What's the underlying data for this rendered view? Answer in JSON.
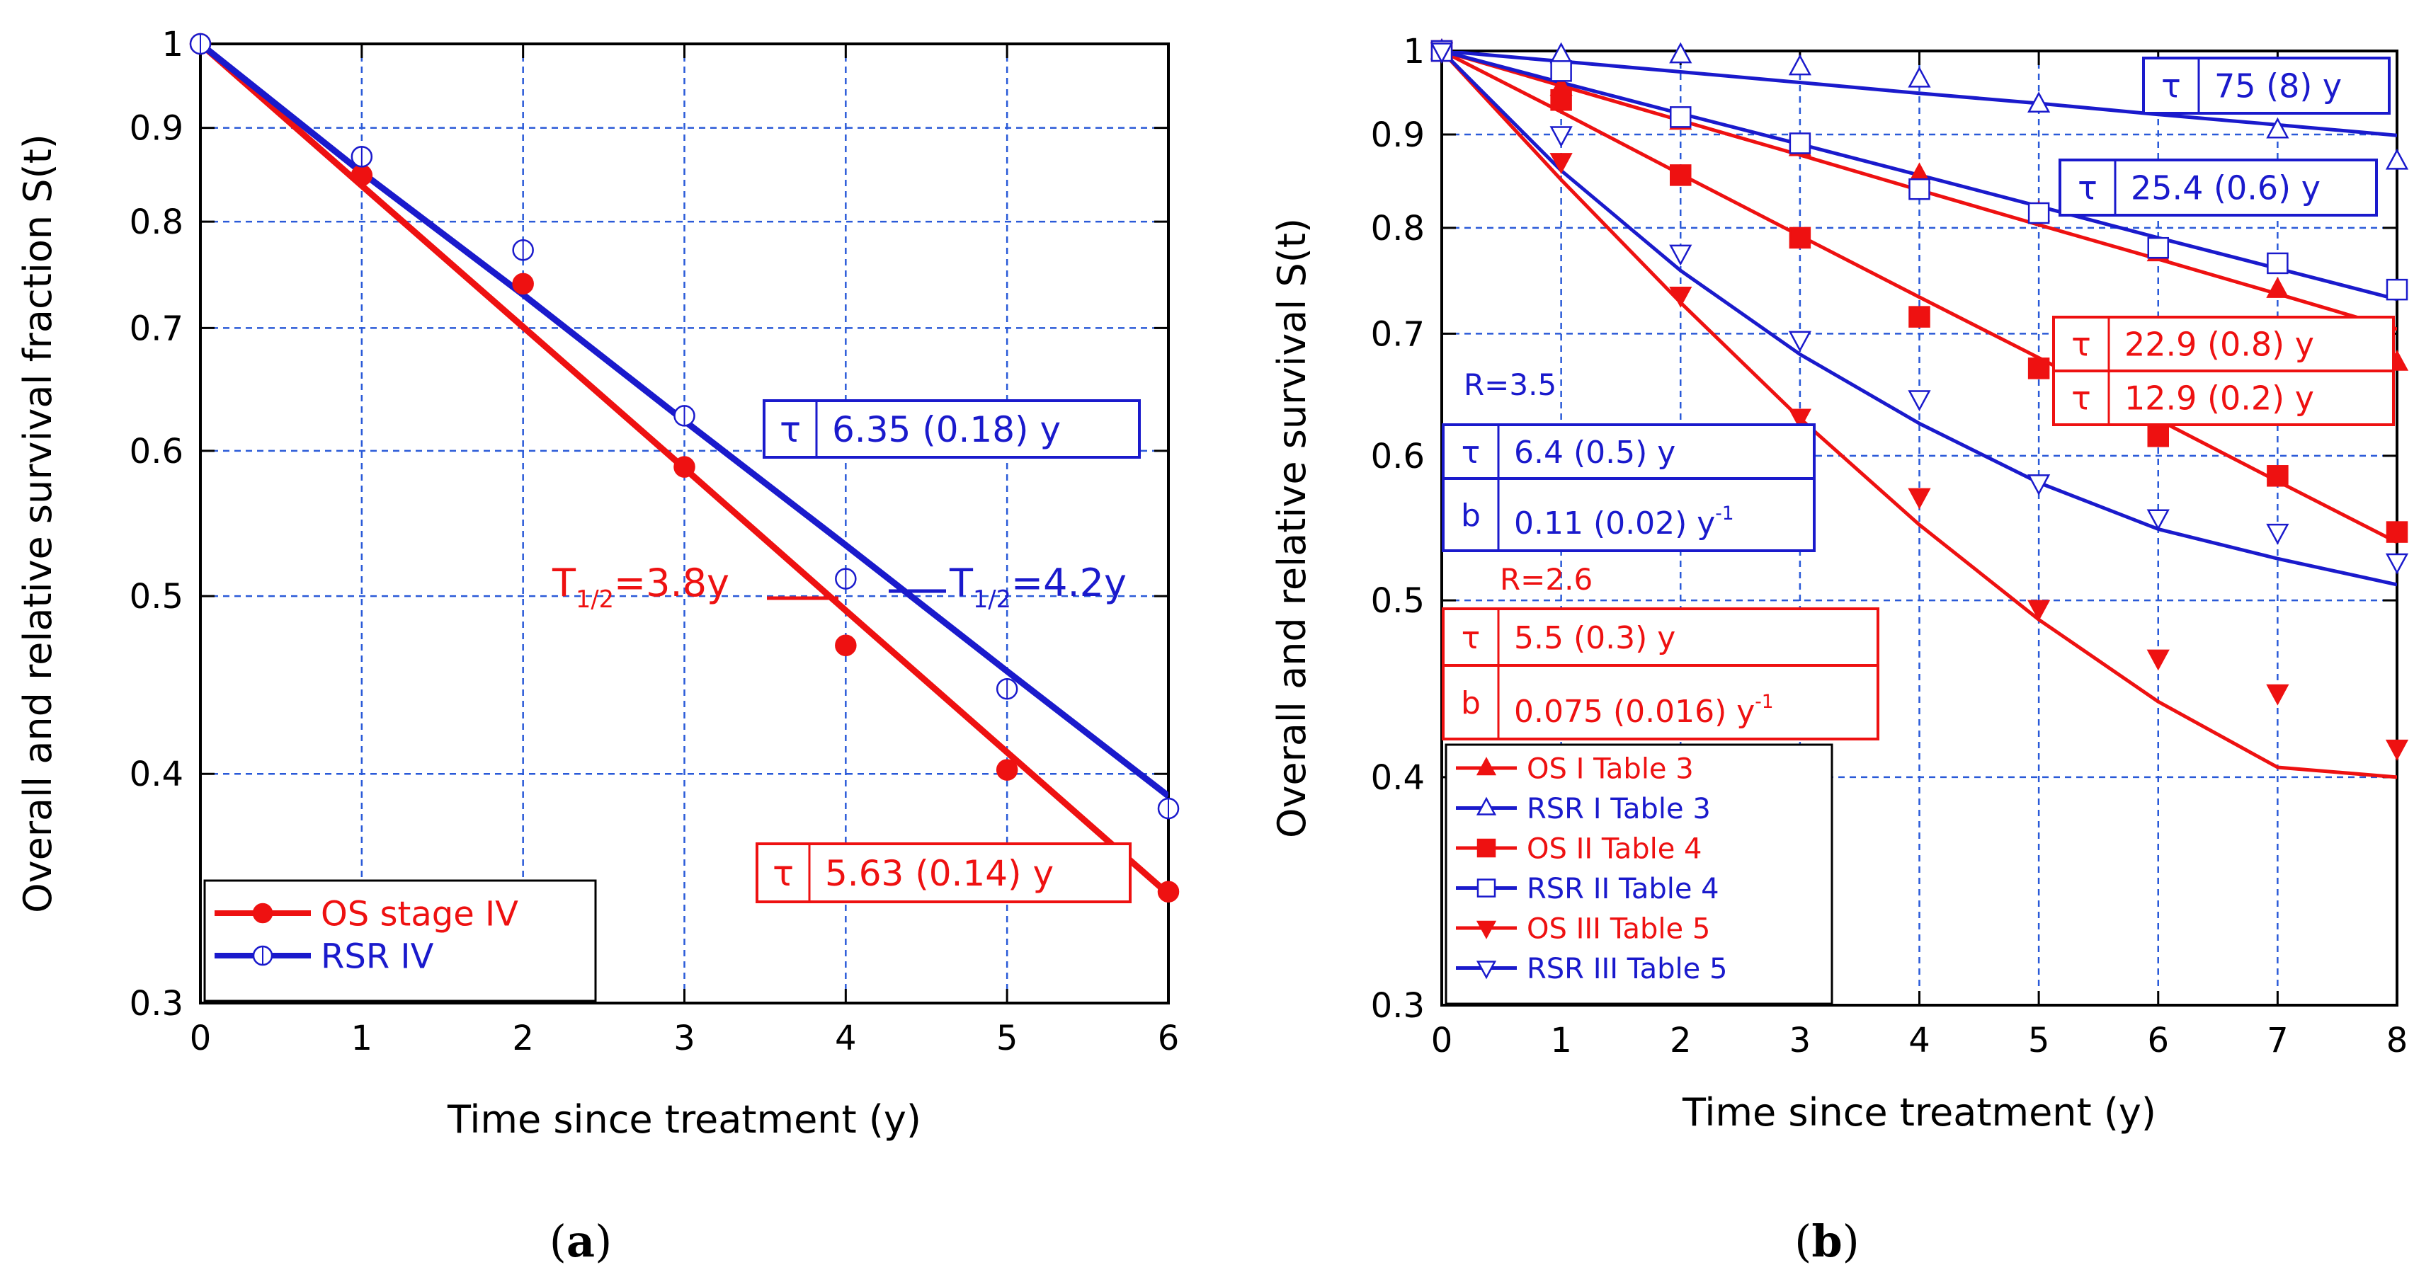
{
  "colors": {
    "os": "#ee1111",
    "rsr": "#1a1acc",
    "grid": "#2a5ad8",
    "axis": "#000000"
  },
  "chart_data": [
    {
      "type": "line",
      "panel_label": "(a)",
      "panel_prefix": "(",
      "panel_letter": "a",
      "panel_suffix": ")",
      "scale_y": "log",
      "xlabel": "Time since treatment (y)",
      "ylabel": "Overall and relative survival fraction S(t)",
      "xlim": [
        0,
        6
      ],
      "ylim": [
        0.3,
        1
      ],
      "xticks": [
        0,
        1,
        2,
        3,
        4,
        5,
        6
      ],
      "yticks": [
        0.3,
        0.4,
        0.5,
        0.6,
        0.7,
        0.8,
        0.9,
        1
      ],
      "ytick_labels": [
        "0.3",
        "0.4",
        "0.5",
        "0.6",
        "0.7",
        "0.8",
        "0.9",
        "1"
      ],
      "grid": true,
      "series": [
        {
          "name": "OS stage IV",
          "color": "#ee1111",
          "marker": "circle-filled",
          "x": [
            0,
            1,
            2,
            3,
            4,
            5,
            6
          ],
          "y": [
            1.0,
            0.848,
            0.74,
            0.588,
            0.47,
            0.402,
            0.345
          ],
          "fit": {
            "x": [
              0,
              1,
              2,
              3,
              4,
              5,
              6
            ],
            "y": [
              1.0,
              0.837,
              0.701,
              0.587,
              0.491,
              0.411,
              0.344
            ]
          }
        },
        {
          "name": "RSR IV",
          "color": "#1a1acc",
          "marker": "circle-open",
          "x": [
            0,
            1,
            2,
            3,
            4,
            5,
            6
          ],
          "y": [
            1.0,
            0.868,
            0.772,
            0.627,
            0.511,
            0.445,
            0.383
          ],
          "fit": {
            "x": [
              0,
              1,
              2,
              3,
              4,
              5,
              6
            ],
            "y": [
              1.0,
              0.851,
              0.73,
              0.623,
              0.533,
              0.455,
              0.389
            ]
          }
        }
      ],
      "annotations": [
        {
          "id": "tau-rsr",
          "symbol": "τ",
          "value": "6.35 (0.18) y",
          "color": "#1a1acc"
        },
        {
          "id": "tau-os",
          "symbol": "τ",
          "value": "5.63 (0.14) y",
          "color": "#ee1111"
        },
        {
          "id": "half-os",
          "base": "T",
          "sub": "1/2",
          "rest": "=3.8y",
          "color": "#ee1111"
        },
        {
          "id": "half-rsr",
          "base": "T",
          "sub": "1/2",
          "rest": "=4.2y",
          "color": "#1a1acc"
        }
      ],
      "legend_position": "bottom-left"
    },
    {
      "type": "line",
      "panel_label": "(b)",
      "panel_prefix": "(",
      "panel_letter": "b",
      "panel_suffix": ")",
      "scale_y": "log",
      "xlabel": "Time since treatment (y)",
      "ylabel": "Overall and relative survival S(t)",
      "xlim": [
        0,
        8
      ],
      "ylim": [
        0.3,
        1
      ],
      "xticks": [
        0,
        1,
        2,
        3,
        4,
        5,
        6,
        7,
        8
      ],
      "yticks": [
        0.3,
        0.4,
        0.5,
        0.6,
        0.7,
        0.8,
        0.9,
        1
      ],
      "ytick_labels": [
        "0.3",
        "0.4",
        "0.5",
        "0.6",
        "0.7",
        "0.8",
        "0.9",
        "1"
      ],
      "grid": true,
      "series": [
        {
          "name": "OS I Table 3",
          "color": "#ee1111",
          "marker": "triangle-up-filled",
          "x": [
            0,
            1,
            2,
            3,
            4,
            5,
            6,
            7,
            8
          ],
          "y": [
            1.0,
            0.955,
            0.915,
            0.885,
            0.855,
            0.815,
            0.775,
            0.74,
            0.675
          ],
          "fit": {
            "x": [
              0,
              1,
              2,
              3,
              4,
              5,
              6,
              7,
              8
            ],
            "y": [
              1.0,
              0.957,
              0.916,
              0.877,
              0.839,
              0.803,
              0.769,
              0.736,
              0.704
            ]
          }
        },
        {
          "name": "RSR I Table 3",
          "color": "#1a1acc",
          "marker": "triangle-up-open",
          "x": [
            0,
            1,
            2,
            3,
            4,
            5,
            6,
            7,
            8
          ],
          "y": [
            1.0,
            0.995,
            0.995,
            0.98,
            0.965,
            0.935,
            0.935,
            0.905,
            0.87
          ],
          "fit": {
            "x": [
              0,
              1,
              2,
              3,
              4,
              5,
              6,
              7,
              8
            ],
            "y": [
              1.0,
              0.987,
              0.974,
              0.961,
              0.948,
              0.936,
              0.923,
              0.911,
              0.899
            ]
          }
        },
        {
          "name": "OS  II Table 4",
          "color": "#ee1111",
          "marker": "square-filled",
          "x": [
            0,
            1,
            2,
            3,
            4,
            5,
            6,
            7,
            8
          ],
          "y": [
            1.0,
            0.94,
            0.855,
            0.79,
            0.715,
            0.67,
            0.615,
            0.585,
            0.545
          ],
          "fit": {
            "x": [
              0,
              1,
              2,
              3,
              4,
              5,
              6,
              7,
              8
            ],
            "y": [
              1.0,
              0.926,
              0.856,
              0.792,
              0.733,
              0.679,
              0.628,
              0.581,
              0.538
            ]
          }
        },
        {
          "name": "RSR II Table 4",
          "color": "#1a1acc",
          "marker": "square-open",
          "x": [
            0,
            1,
            2,
            3,
            4,
            5,
            6,
            7,
            8
          ],
          "y": [
            1.0,
            0.975,
            0.92,
            0.89,
            0.84,
            0.815,
            0.78,
            0.765,
            0.74
          ],
          "fit": {
            "x": [
              0,
              1,
              2,
              3,
              4,
              5,
              6,
              7,
              8
            ],
            "y": [
              1.0,
              0.961,
              0.924,
              0.889,
              0.855,
              0.822,
              0.79,
              0.76,
              0.731
            ]
          }
        },
        {
          "name": "OS III Table 5",
          "color": "#ee1111",
          "marker": "triangle-down-filled",
          "x": [
            0,
            1,
            2,
            3,
            4,
            5,
            6,
            7,
            8
          ],
          "y": [
            1.0,
            0.87,
            0.735,
            0.63,
            0.57,
            0.495,
            0.465,
            0.445,
            0.415
          ],
          "fit": {
            "x": [
              0,
              1,
              2,
              3,
              4,
              5,
              6,
              7,
              8
            ],
            "y": [
              1.0,
              0.85,
              0.728,
              0.629,
              0.55,
              0.488,
              0.44,
              0.405,
              0.4
            ]
          }
        },
        {
          "name": "RSR III Table 5",
          "color": "#1a1acc",
          "marker": "triangle-down-open",
          "x": [
            0,
            1,
            2,
            3,
            4,
            5,
            6,
            7,
            8
          ],
          "y": [
            1.0,
            0.9,
            0.775,
            0.695,
            0.645,
            0.58,
            0.555,
            0.545,
            0.525
          ],
          "fit": {
            "x": [
              0,
              1,
              2,
              3,
              4,
              5,
              6,
              7,
              8
            ],
            "y": [
              1.0,
              0.86,
              0.758,
              0.682,
              0.625,
              0.58,
              0.547,
              0.527,
              0.51
            ]
          }
        }
      ],
      "annotations": [
        {
          "id": "tau-rsr1",
          "symbol": "τ",
          "value": "75 (8) y",
          "color": "#1a1acc"
        },
        {
          "id": "tau-rsr2",
          "symbol": "τ",
          "value": "25.4 (0.6) y",
          "color": "#1a1acc"
        },
        {
          "id": "tau-os1",
          "symbol": "τ",
          "value": "22.9 (0.8) y",
          "color": "#ee1111"
        },
        {
          "id": "tau-os2",
          "symbol": "τ",
          "value": "12.9 (0.2) y",
          "color": "#ee1111"
        },
        {
          "id": "R-rsr3",
          "text": "R=3.5",
          "color": "#1a1acc"
        },
        {
          "id": "box-rsr3-tau",
          "symbol": "τ",
          "value": "6.4 (0.5) y",
          "color": "#1a1acc"
        },
        {
          "id": "box-rsr3-b",
          "symbol": "b",
          "value": "0.11 (0.02) y",
          "sup": "-1",
          "color": "#1a1acc"
        },
        {
          "id": "R-os3",
          "text": "R=2.6",
          "color": "#ee1111"
        },
        {
          "id": "box-os3-tau",
          "symbol": "τ",
          "value": "5.5 (0.3) y",
          "color": "#ee1111"
        },
        {
          "id": "box-os3-b",
          "symbol": "b",
          "value": "0.075 (0.016) y",
          "sup": "-1",
          "color": "#ee1111"
        }
      ],
      "legend_position": "bottom-left"
    }
  ]
}
